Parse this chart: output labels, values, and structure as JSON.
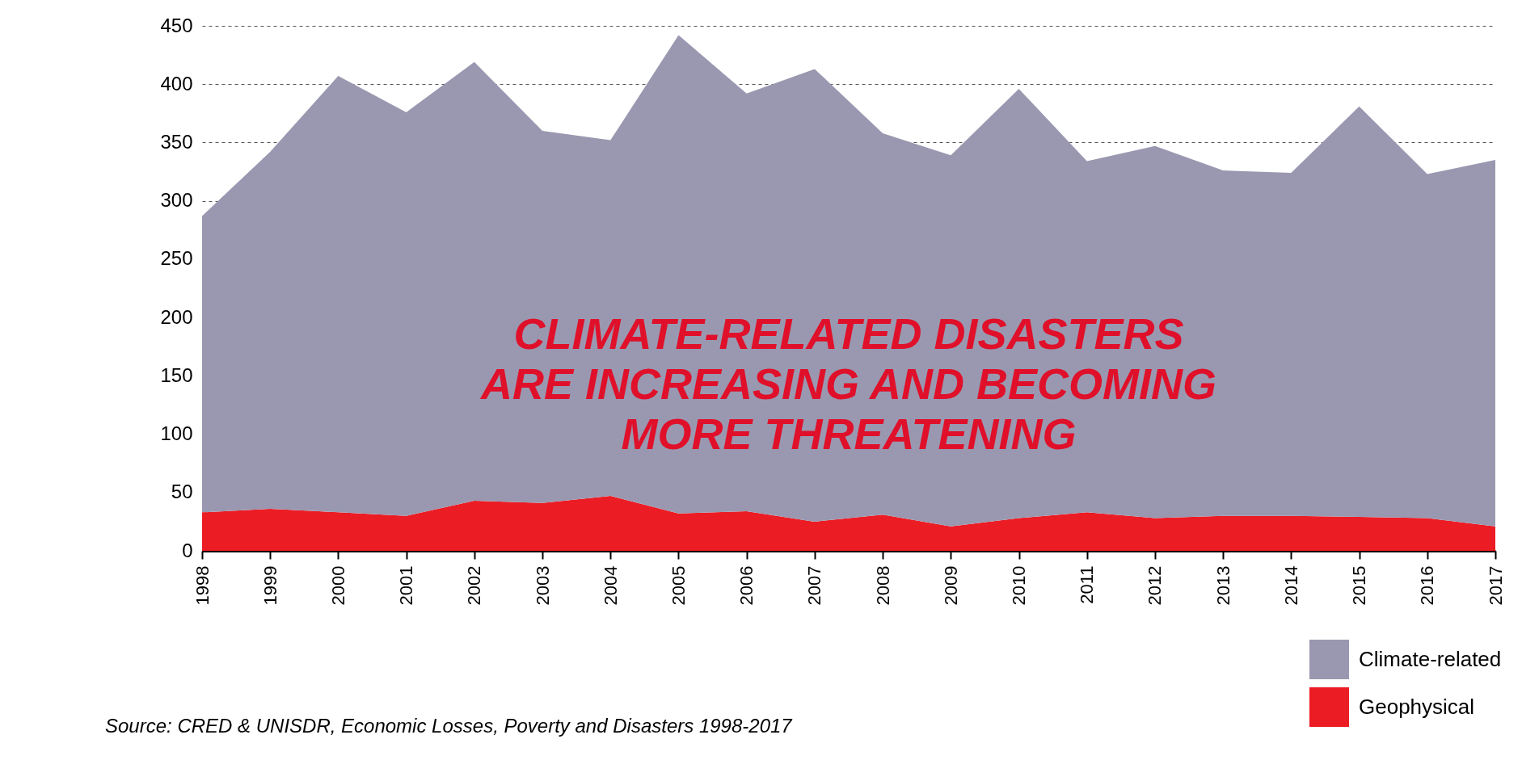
{
  "chart_data": {
    "type": "area",
    "stacked": true,
    "categories": [
      "1998",
      "1999",
      "2000",
      "2001",
      "2002",
      "2003",
      "2004",
      "2005",
      "2006",
      "2007",
      "2008",
      "2009",
      "2010",
      "2011",
      "2012",
      "2013",
      "2014",
      "2015",
      "2016",
      "2017"
    ],
    "series": [
      {
        "name": "Geophysical",
        "color": "#ec1c24",
        "values": [
          33,
          36,
          33,
          30,
          43,
          41,
          47,
          32,
          34,
          25,
          31,
          21,
          28,
          33,
          28,
          30,
          30,
          29,
          28,
          21
        ]
      },
      {
        "name": "Climate-related",
        "color": "#9a98b0",
        "values": [
          254,
          306,
          374,
          346,
          376,
          319,
          305,
          410,
          358,
          388,
          327,
          318,
          368,
          301,
          319,
          296,
          294,
          352,
          295,
          314
        ]
      }
    ],
    "ylim": [
      0,
      450
    ],
    "yticks": [
      0,
      50,
      100,
      150,
      200,
      250,
      300,
      350,
      400,
      450
    ],
    "grid": "y",
    "legend": "bottom right",
    "annotations": [
      "CLIMATE-RELATED DISASTERS\nARE INCREASING AND BECOMING\nMORE THREATENING",
      "Source: CRED & UNISDR, Economic Losses, Poverty and Disasters 1998-2017"
    ]
  }
}
